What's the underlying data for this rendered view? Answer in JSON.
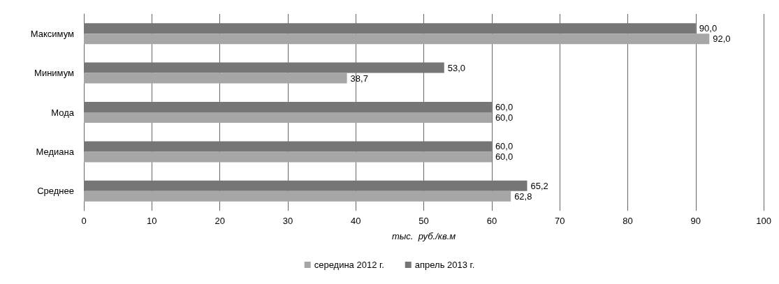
{
  "chart_data": {
    "type": "bar",
    "orientation": "horizontal",
    "categories": [
      "Максимум",
      "Минимум",
      "Мода",
      "Медиана",
      "Среднее"
    ],
    "series": [
      {
        "name": "середина 2012 г.",
        "color": "#a6a6a6",
        "values": [
          92.0,
          38.7,
          60.0,
          60.0,
          62.8
        ],
        "value_labels": [
          "92,0",
          "38,7",
          "60,0",
          "60,0",
          "62,8"
        ]
      },
      {
        "name": "апрель 2013 г.",
        "color": "#767676",
        "values": [
          90.0,
          53.0,
          60.0,
          60.0,
          65.2
        ],
        "value_labels": [
          "90,0",
          "53,0",
          "60,0",
          "60,0",
          "65,2"
        ]
      }
    ],
    "xlim": [
      0,
      100
    ],
    "xticks": [
      0,
      10,
      20,
      30,
      40,
      50,
      60,
      70,
      80,
      90,
      100
    ],
    "xlabel": "тыс.  руб./кв.м",
    "grid": "x",
    "legend": "bottom"
  }
}
